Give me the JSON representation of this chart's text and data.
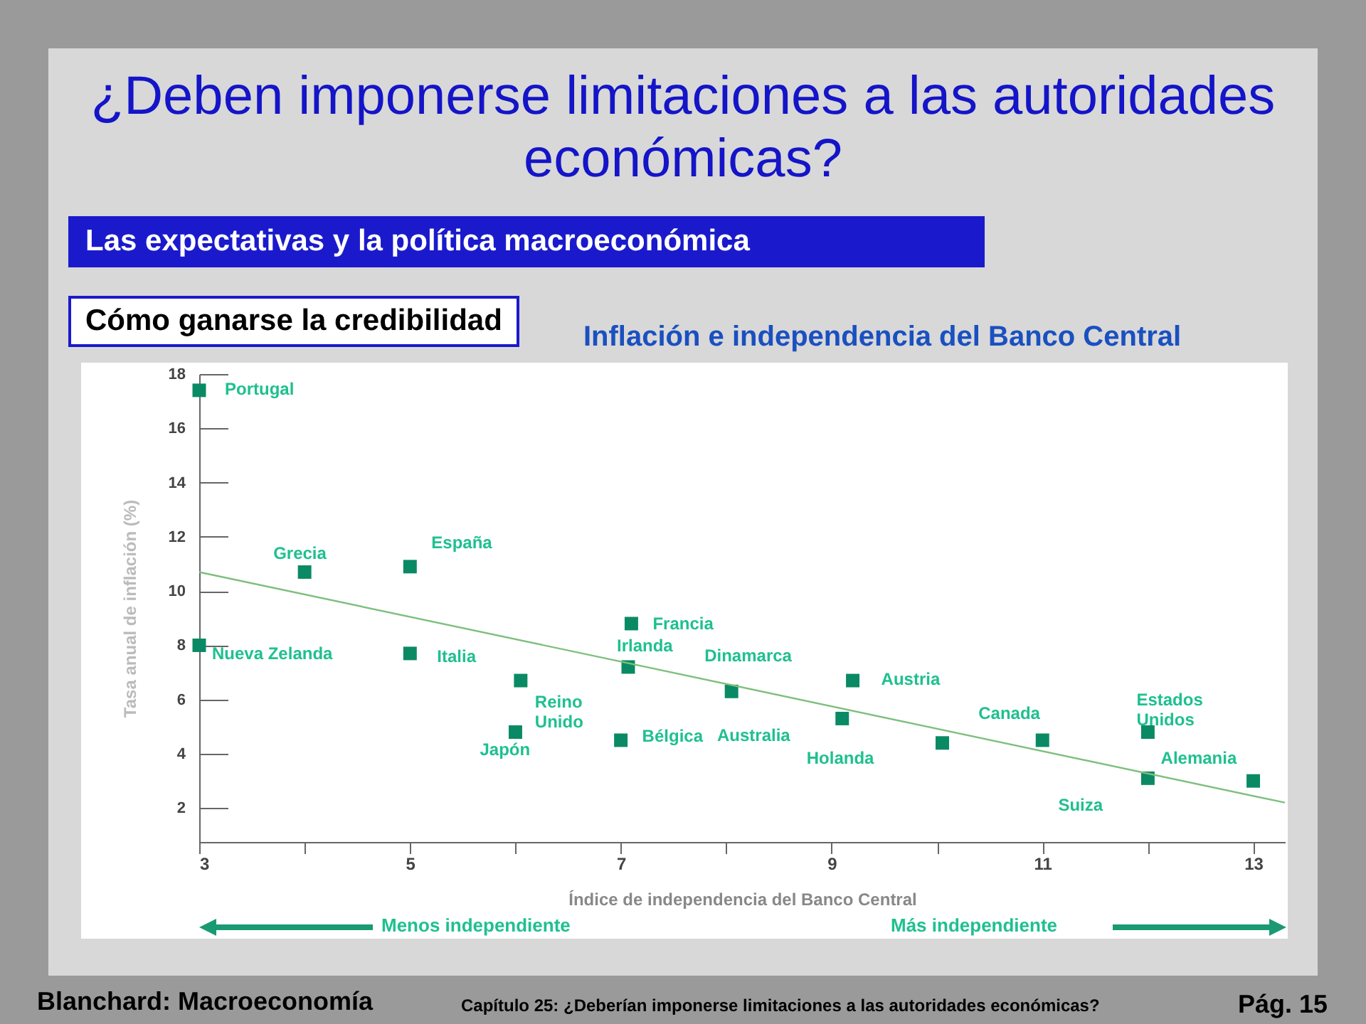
{
  "chart_data": {
    "type": "scatter",
    "title": "¿Deben imponerse limitaciones a las autoridades económicas?",
    "subtitle": "Inflación e independencia del Banco Central",
    "xlabel": "Índice de independencia del Banco Central",
    "ylabel": "Tasa anual de inflación (%)",
    "xlim": [
      3,
      13.3
    ],
    "ylim": [
      0.75,
      18
    ],
    "xticks": [
      3,
      {
        "value": 4,
        "label": null
      },
      5,
      {
        "value": 6,
        "label": null
      },
      7,
      {
        "value": 8,
        "label": null
      },
      9,
      {
        "value": 10,
        "label": null
      },
      11,
      {
        "value": 12,
        "label": null
      },
      13
    ],
    "yticks": [
      2,
      4,
      6,
      8,
      10,
      12,
      14,
      16,
      18
    ],
    "series": [
      {
        "color": "#0a8a64",
        "marker": "square",
        "x": [
          3,
          3,
          4,
          5,
          5,
          6.05,
          6,
          7.07,
          7.1,
          7,
          8.05,
          9.2,
          9.1,
          10.05,
          11,
          12,
          12,
          13
        ],
        "values": [
          17.4,
          8,
          10.7,
          10.9,
          7.7,
          6.7,
          4.8,
          7.2,
          8.8,
          4.5,
          6.3,
          6.7,
          5.3,
          4.4,
          4.5,
          4.8,
          3.1,
          3
        ]
      },
      {
        "type": "line",
        "color": "#7fbf7f",
        "x": [
          3,
          13.3
        ],
        "values": [
          10.7,
          2.2
        ]
      }
    ],
    "grid": false,
    "annotations": [
      "Las expectativas y la política macroeconómica",
      "Cómo ganarse la credibilidad",
      "Menos independiente",
      "Más independiente",
      "Blanchard: Macroeconomía",
      "Capítulo 25: ¿Deberían imponerse limitaciones a las autoridades económicas?",
      "Pág. 15",
      {
        "text": "Portugal",
        "x": 3,
        "y": 17.4
      },
      {
        "text": "Grecia",
        "x": 4,
        "y": 10.7
      },
      {
        "text": "España",
        "x": 5,
        "y": 10.9
      },
      {
        "text": "Nueva Zelanda",
        "x": 3,
        "y": 8
      },
      {
        "text": "Italia",
        "x": 5,
        "y": 7.7
      },
      {
        "text": "Reino\nUnido",
        "x": 6.05,
        "y": 6.7
      },
      {
        "text": "Japón",
        "x": 6,
        "y": 4.8
      },
      {
        "text": "Irlanda",
        "x": 7.07,
        "y": 7.2
      },
      {
        "text": "Francia",
        "x": 7.1,
        "y": 8.8
      },
      {
        "text": "Bélgica",
        "x": 7,
        "y": 4.5
      },
      {
        "text": "Dinamarca",
        "x": 8.05,
        "y": 6.3
      },
      "Australia",
      {
        "text": "Austria",
        "x": 9.2,
        "y": 6.7
      },
      {
        "text": "Holanda",
        "x": 9.1,
        "y": 5.3
      },
      {
        "text": "Canada",
        "x": 11,
        "y": 4.5
      },
      {
        "text": "Estados\nUnidos",
        "x": 12,
        "y": 4.8
      },
      {
        "text": "Alemania",
        "x": 13,
        "y": 3
      },
      {
        "text": "Suiza",
        "x": 12,
        "y": 3.1
      }
    ]
  }
}
